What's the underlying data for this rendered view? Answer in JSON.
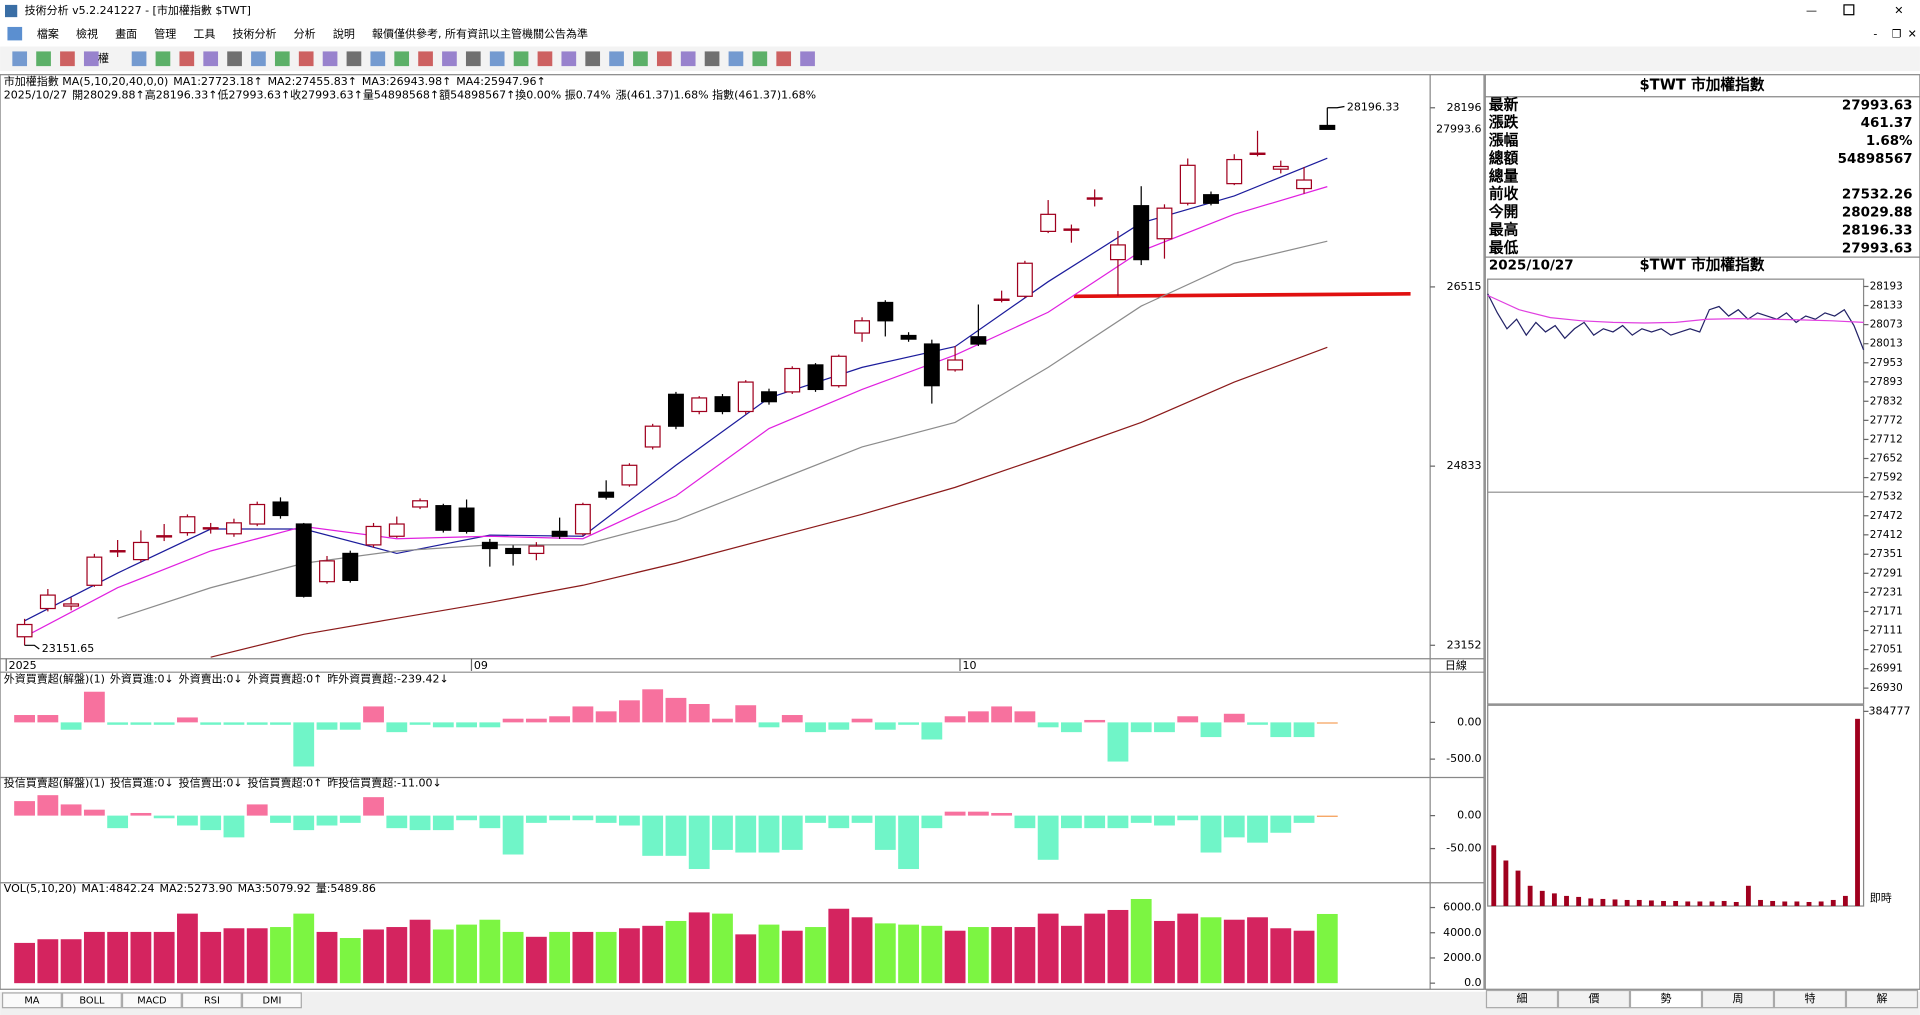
{
  "window": {
    "title": "技術分析 v5.2.241227 - [市加權指數 $TWT]"
  },
  "menu": [
    "檔案",
    "檢視",
    "畫面",
    "管理",
    "工具",
    "技術分析",
    "分析",
    "說明",
    "報價僅供參考, 所有資訊以主管機關公告為準"
  ],
  "toolbar": {
    "label": "權"
  },
  "chart_data": [
    {
      "type": "candlestick",
      "header": [
        {
          "text": "市加權指數 MA(5,10,20,40,0,0)",
          "color": "#000000"
        },
        {
          "text": "MA1:27723.18↑",
          "color": "#1c1c9c"
        },
        {
          "text": "MA2:27455.83↑",
          "color": "#e020e0"
        },
        {
          "text": "MA3:26943.98↑",
          "color": "#808080"
        },
        {
          "text": "MA4:25947.96↑",
          "color": "#8b1a1a"
        }
      ],
      "info": [
        {
          "text": "2025/10/27",
          "color": "#000000"
        },
        {
          "text": "開28029.88↑高28196.33↑低27993.63↑收27993.63↑量54898568↑額54898567↑換0.00% 振0.74%",
          "color": "#a0001e"
        },
        {
          "text": "漲(461.37)1.68% 指數(461.37)1.68%",
          "color": "#e02020"
        }
      ],
      "open": [
        23232,
        23497,
        23520,
        23715,
        24037,
        23956,
        24175,
        24209,
        24250,
        24198,
        24290,
        24496,
        24290,
        23749,
        24014,
        24094,
        24175,
        24450,
        24462,
        24439,
        24117,
        24060,
        24014,
        24221,
        24198,
        24588,
        24657,
        25013,
        25507,
        25346,
        25484,
        25346,
        25530,
        25530,
        25783,
        25588,
        26082,
        26369,
        26059,
        25979,
        25737,
        26047,
        26392,
        26427,
        27036,
        27047,
        27346,
        26771,
        27277,
        26967,
        27300,
        27380,
        27484,
        27760,
        27620,
        27438,
        28029.88
      ],
      "high": [
        23400,
        23680,
        23600,
        24010,
        24140,
        24230,
        24290,
        24380,
        24300,
        24340,
        24500,
        24540,
        24300,
        23990,
        24040,
        24300,
        24360,
        24530,
        24480,
        24520,
        24150,
        24090,
        24120,
        24350,
        24490,
        24700,
        24860,
        25230,
        25530,
        25490,
        25510,
        25640,
        25560,
        25770,
        25800,
        25880,
        26230,
        26390,
        26090,
        26020,
        25960,
        26350,
        26480,
        26760,
        27330,
        27100,
        27430,
        27040,
        27460,
        27290,
        27720,
        27410,
        27760,
        27980,
        27700,
        27640,
        28196.33
      ],
      "low": [
        23151.65,
        23470,
        23480,
        23700,
        23980,
        23930,
        24130,
        24180,
        24200,
        24170,
        24270,
        24340,
        23600,
        23730,
        23740,
        24070,
        24160,
        24430,
        24210,
        24200,
        23890,
        23900,
        23950,
        24150,
        24180,
        24520,
        24640,
        24990,
        25180,
        25320,
        25320,
        25320,
        25410,
        25510,
        25530,
        25570,
        26000,
        26050,
        26000,
        25420,
        25720,
        25960,
        26370,
        26410,
        27020,
        26930,
        27270,
        26430,
        26720,
        26780,
        27280,
        27280,
        27470,
        27740,
        27580,
        27390,
        27993.63
      ],
      "close": [
        23347,
        23623,
        23540,
        23979,
        24040,
        24117,
        24180,
        24358,
        24255,
        24301,
        24473,
        24370,
        23612,
        23944,
        23761,
        24267,
        24290,
        24508,
        24232,
        24221,
        24060,
        24014,
        24083,
        24175,
        24473,
        24542,
        24841,
        25208,
        25208,
        25473,
        25346,
        25622,
        25438,
        25749,
        25553,
        25864,
        26197,
        26197,
        26025,
        25588,
        25829,
        25979,
        26400,
        26737,
        27196,
        27058,
        27350,
        26909,
        26771,
        27254,
        27656,
        27300,
        27710,
        27770,
        27645,
        27518,
        27993.63
      ],
      "up_color": "#a0001e",
      "down_color": "#000000",
      "ma_x": [
        0,
        4,
        8,
        12,
        16,
        20,
        24,
        28,
        32,
        36,
        40,
        44,
        48,
        52,
        56
      ],
      "series": [
        {
          "color": "#1c1c9c",
          "values": [
            23382,
            23830,
            24243,
            24243,
            24014,
            24186,
            24175,
            24841,
            25473,
            25760,
            25955,
            26564,
            27116,
            27369,
            27723.18
          ]
        },
        {
          "color": "#e020e0",
          "values": [
            23232,
            23692,
            24037,
            24267,
            24152,
            24175,
            24152,
            24554,
            25186,
            25553,
            25875,
            26277,
            26852,
            27196,
            27455.83
          ]
        },
        {
          "color": "#8c8c8c",
          "values": [
            null,
            23405,
            23692,
            23922,
            24037,
            24094,
            24094,
            24324,
            24669,
            25013,
            25243,
            25760,
            26335,
            26737,
            26943.98
          ]
        },
        {
          "color": "#8b1a1a",
          "values": [
            null,
            null,
            23040,
            23255,
            23405,
            23554,
            23715,
            23922,
            24152,
            24381,
            24634,
            24933,
            25243,
            25622,
            25947.96
          ]
        }
      ],
      "ylim": [
        23026,
        28495
      ],
      "yticks": [
        28196,
        26515,
        24833,
        23152
      ],
      "last_price": {
        "value": 27993.63,
        "label": "27993.6"
      },
      "high_label": 28196.33,
      "low_label": 23151.65,
      "x_labels": [
        {
          "index": 0,
          "label": "2025"
        },
        {
          "index": 20,
          "label": "09"
        },
        {
          "index": 41,
          "label": "10"
        }
      ],
      "period": "日線"
    },
    {
      "type": "bar",
      "header": [
        {
          "text": "外資買賣超(解盤)(1)",
          "color": "#000000"
        },
        {
          "text": "外資買進:0↓",
          "color": "#1c1c9c"
        },
        {
          "text": "外資賣出:0↓",
          "color": "#e020e0"
        },
        {
          "text": "外資買賣超:0↑",
          "color": "#808080"
        },
        {
          "text": "昨外資買賣超:-239.42↓",
          "color": "#3399ff"
        }
      ],
      "values": [
        100,
        100,
        -100,
        417,
        -33,
        -33,
        -33,
        67,
        -33,
        -33,
        -33,
        -33,
        -600,
        -100,
        -100,
        217,
        -133,
        -33,
        -67,
        -67,
        -67,
        50,
        50,
        83,
        217,
        150,
        300,
        450,
        333,
        250,
        50,
        233,
        -67,
        100,
        -133,
        -100,
        50,
        -100,
        -33,
        -233,
        83,
        150,
        217,
        150,
        -67,
        -133,
        33,
        -533,
        -133,
        -133,
        83,
        -200,
        117,
        -33,
        -200,
        -200,
        -17
      ],
      "pos_color": "#f7719e",
      "neg_color": "#70f5c8",
      "last_color": "#f5a25e",
      "ylim": [
        -733,
        683
      ],
      "yticks": [
        {
          "value": 0,
          "label": "0.00"
        },
        {
          "value": -500,
          "label": "-500.0"
        }
      ]
    },
    {
      "type": "bar",
      "header": [
        {
          "text": "投信買賣超(解盤)(1)",
          "color": "#000000"
        },
        {
          "text": "投信買進:0↓",
          "color": "#1c1c9c"
        },
        {
          "text": "投信賣出:0↓",
          "color": "#e020e0"
        },
        {
          "text": "投信買賣超:0↑",
          "color": "#808080"
        },
        {
          "text": "昨投信買賣超:-11.00↓",
          "color": "#3399ff"
        }
      ],
      "values": [
        22,
        31,
        17,
        9,
        -19,
        4,
        -4,
        -15,
        -22,
        -33,
        17,
        -11,
        -22,
        -15,
        -11,
        28,
        -19,
        -22,
        -22,
        -7,
        -19,
        -59,
        -11,
        -7,
        -7,
        -11,
        -15,
        -61,
        -61,
        -81,
        -52,
        -56,
        -56,
        -52,
        -11,
        -19,
        -11,
        -52,
        -81,
        -19,
        6,
        6,
        4,
        -19,
        -67,
        -19,
        -19,
        -19,
        -11,
        -15,
        -7,
        -56,
        -33,
        -41,
        -26,
        -11,
        -2
      ],
      "pos_color": "#f7719e",
      "neg_color": "#70f5c8",
      "last_color": "#f5a25e",
      "ylim": [
        -100,
        56
      ],
      "yticks": [
        {
          "value": 0,
          "label": "0.00"
        },
        {
          "value": -50,
          "label": "-50.00"
        }
      ]
    },
    {
      "type": "bar",
      "header": [
        {
          "text": "VOL(5,10,20)",
          "color": "#000000"
        },
        {
          "text": "MA1:4842.24",
          "color": "#1c1c9c"
        },
        {
          "text": "MA2:5273.90",
          "color": "#e020e0"
        },
        {
          "text": "MA3:5079.92",
          "color": "#808080"
        },
        {
          "text": "量:5489.86",
          "color": "#3399ff"
        }
      ],
      "values": [
        3194,
        3485,
        3485,
        4066,
        4066,
        4066,
        4066,
        5518,
        4066,
        4356,
        4356,
        4453,
        5518,
        4066,
        3582,
        4259,
        4453,
        5034,
        4259,
        4646,
        5034,
        4066,
        3678,
        4066,
        4066,
        4066,
        4356,
        4550,
        4937,
        5614,
        5518,
        3872,
        4646,
        4162,
        4453,
        5905,
        5227,
        4743,
        4646,
        4550,
        4162,
        4453,
        4453,
        4453,
        5518,
        4550,
        5518,
        5808,
        6679,
        4937,
        5518,
        5227,
        5034,
        5227,
        4356,
        4162,
        5489.86
      ],
      "up_color": "#d4245f",
      "down_color": "#7cf542",
      "ylim": [
        0,
        6800
      ],
      "yticks": [
        {
          "value": 0,
          "label": "0.0"
        },
        {
          "value": 2000,
          "label": "2000.0"
        },
        {
          "value": 4000,
          "label": "4000.0"
        },
        {
          "value": 6000,
          "label": "6000.0"
        }
      ]
    },
    {
      "type": "line",
      "series": [
        {
          "color": "#222266",
          "values": [
            28170,
            28110,
            28060,
            28090,
            28040,
            28080,
            28050,
            28070,
            28030,
            28060,
            28080,
            28040,
            28060,
            28050,
            28070,
            28040,
            28060,
            28050,
            28060,
            28040,
            28050,
            28060,
            28050,
            28120,
            28130,
            28100,
            28120,
            28090,
            28110,
            28100,
            28090,
            28110,
            28080,
            28100,
            28090,
            28110,
            28100,
            28120,
            28070,
            27993.63
          ]
        },
        {
          "color": "#e040e0",
          "values": [
            28165,
            28120,
            28095,
            28085,
            28080,
            28078,
            28080,
            28090,
            28092,
            28090,
            28088,
            28085,
            28080
          ]
        }
      ],
      "ylim": [
        26880,
        28216
      ],
      "yticks": [
        28193,
        28133,
        28073,
        28013,
        27953,
        27893,
        27832,
        27772,
        27712,
        27652,
        27592,
        27532,
        27472,
        27412,
        27351,
        27291,
        27231,
        27171,
        27111,
        27051,
        26991,
        26930
      ]
    },
    {
      "type": "bar",
      "values": [
        120000,
        90000,
        70000,
        40000,
        30000,
        25000,
        20000,
        18000,
        15000,
        14000,
        13000,
        12000,
        12000,
        11000,
        10000,
        10000,
        9000,
        9000,
        9000,
        10000,
        8000,
        40000,
        12000,
        10000,
        9000,
        9000,
        8000,
        9000,
        12000,
        20000,
        370000
      ],
      "color": "#a0001e",
      "ylim": [
        0,
        384777
      ],
      "yticks": [
        384777
      ],
      "label": "即時"
    }
  ],
  "quote": {
    "title": "$TWT 市加權指數",
    "rows": [
      {
        "label": "最新",
        "value": 27993.63
      },
      {
        "label": "漲跌",
        "value": 461.37
      },
      {
        "label": "漲幅",
        "value": "1.68%"
      },
      {
        "label": "總額",
        "value": 54898567
      },
      {
        "label": "總量"
      },
      {
        "label": "前收",
        "value": 27532.26
      },
      {
        "label": "今開",
        "value": 28029.88
      },
      {
        "label": "最高",
        "value": 28196.33
      },
      {
        "label": "最低",
        "value": 27993.63
      }
    ]
  },
  "intraday_header": {
    "date": "2025/10/27",
    "title": "$TWT 市加權指數"
  },
  "tabs": [
    "MA",
    "BOLL",
    "MACD",
    "RSI",
    "DMI"
  ],
  "side_tabs": [
    "細",
    "價",
    "勢",
    "周",
    "特",
    "解"
  ]
}
